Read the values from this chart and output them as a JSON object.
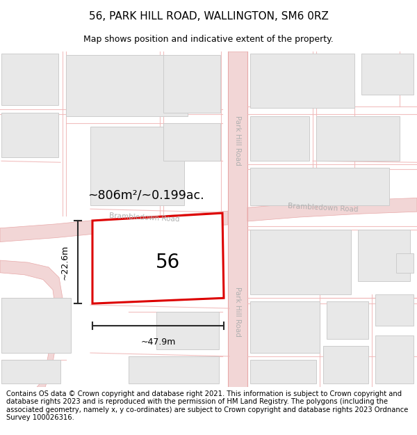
{
  "title": "56, PARK HILL ROAD, WALLINGTON, SM6 0RZ",
  "subtitle": "Map shows position and indicative extent of the property.",
  "footer": "Contains OS data © Crown copyright and database right 2021. This information is subject to Crown copyright and database rights 2023 and is reproduced with the permission of HM Land Registry. The polygons (including the associated geometry, namely x, y co-ordinates) are subject to Crown copyright and database rights 2023 Ordnance Survey 100026316.",
  "bg_color": "#ffffff",
  "map_bg": "#ffffff",
  "road_color": "#f2d6d6",
  "road_edge_color": "#e8a8a8",
  "building_fill": "#e8e8e8",
  "building_edge": "#cccccc",
  "plot_line_color": "#f0b8b8",
  "property_fill": "#ffffff",
  "property_edge": "#dd0000",
  "property_label": "56",
  "area_text": "~806m²/~0.199ac.",
  "width_text": "~47.9m",
  "height_text": "~22.6m",
  "dimension_color": "#2a2a2a",
  "road_label_color": "#b0b0b0",
  "title_fontsize": 11,
  "subtitle_fontsize": 9,
  "footer_fontsize": 7.2
}
